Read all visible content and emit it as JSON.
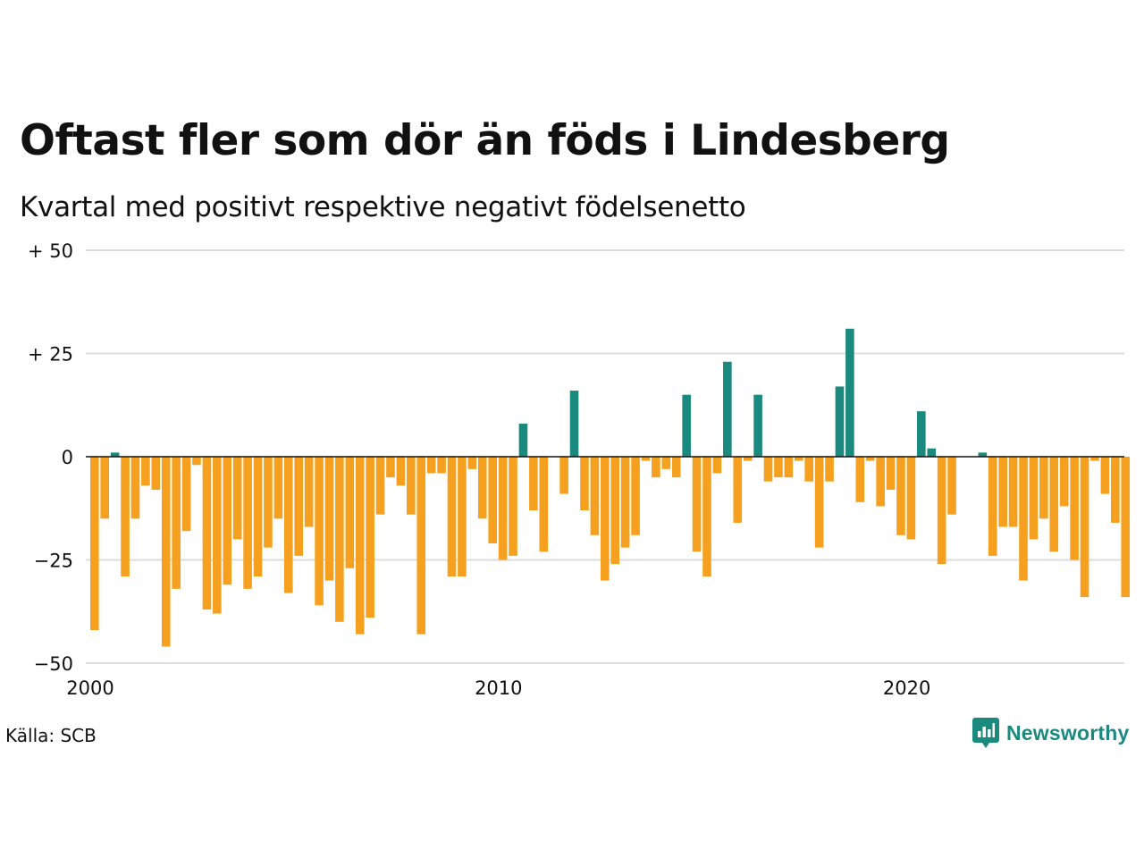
{
  "title": "Oftast fler som dör än föds i Lindesberg",
  "subtitle": "Kvartal med positivt respektive negativt födelsenetto",
  "source": "Källa: SCB",
  "brand": {
    "name": "Newsworthy",
    "icon": "newsworthy-logo-icon"
  },
  "colors": {
    "positive": "#1a8a7e",
    "negative": "#f5a11f",
    "grid": "#dddddd",
    "zero_line": "#111111",
    "brand": "#1a8a7e"
  },
  "chart_data": {
    "type": "bar",
    "x_start_year": 2000,
    "x_ticks": [
      "2000",
      "2010",
      "2020"
    ],
    "y_ticks": [
      {
        "value": 50,
        "label": "+ 50"
      },
      {
        "value": 25,
        "label": "+ 25"
      },
      {
        "value": 0,
        "label": "0"
      },
      {
        "value": -25,
        "label": "−25"
      },
      {
        "value": -50,
        "label": "−50"
      }
    ],
    "ylim": [
      -50,
      50
    ],
    "grid": true,
    "values": [
      -42,
      -15,
      1,
      -29,
      -15,
      -7,
      -8,
      -46,
      -32,
      -18,
      -2,
      -37,
      -38,
      -31,
      -20,
      -32,
      -29,
      -22,
      -15,
      -33,
      -24,
      -17,
      -36,
      -30,
      -40,
      -27,
      -43,
      -39,
      -14,
      -5,
      -7,
      -14,
      -43,
      -4,
      -4,
      -29,
      -29,
      -3,
      -15,
      -21,
      -25,
      -24,
      8,
      -13,
      -23,
      0,
      -9,
      16,
      -13,
      -19,
      -30,
      -26,
      -22,
      -19,
      -1,
      -5,
      -3,
      -5,
      15,
      -23,
      -29,
      -4,
      23,
      -16,
      -1,
      15,
      -6,
      -5,
      -5,
      -1,
      -6,
      -22,
      -6,
      17,
      31,
      -11,
      -1,
      -12,
      -8,
      -19,
      -20,
      11,
      2,
      -26,
      -14,
      0,
      0,
      1,
      -24,
      -17,
      -17,
      -30,
      -20,
      -15,
      -23,
      -12,
      -25,
      -34,
      -1,
      -9,
      -16,
      -34
    ]
  }
}
